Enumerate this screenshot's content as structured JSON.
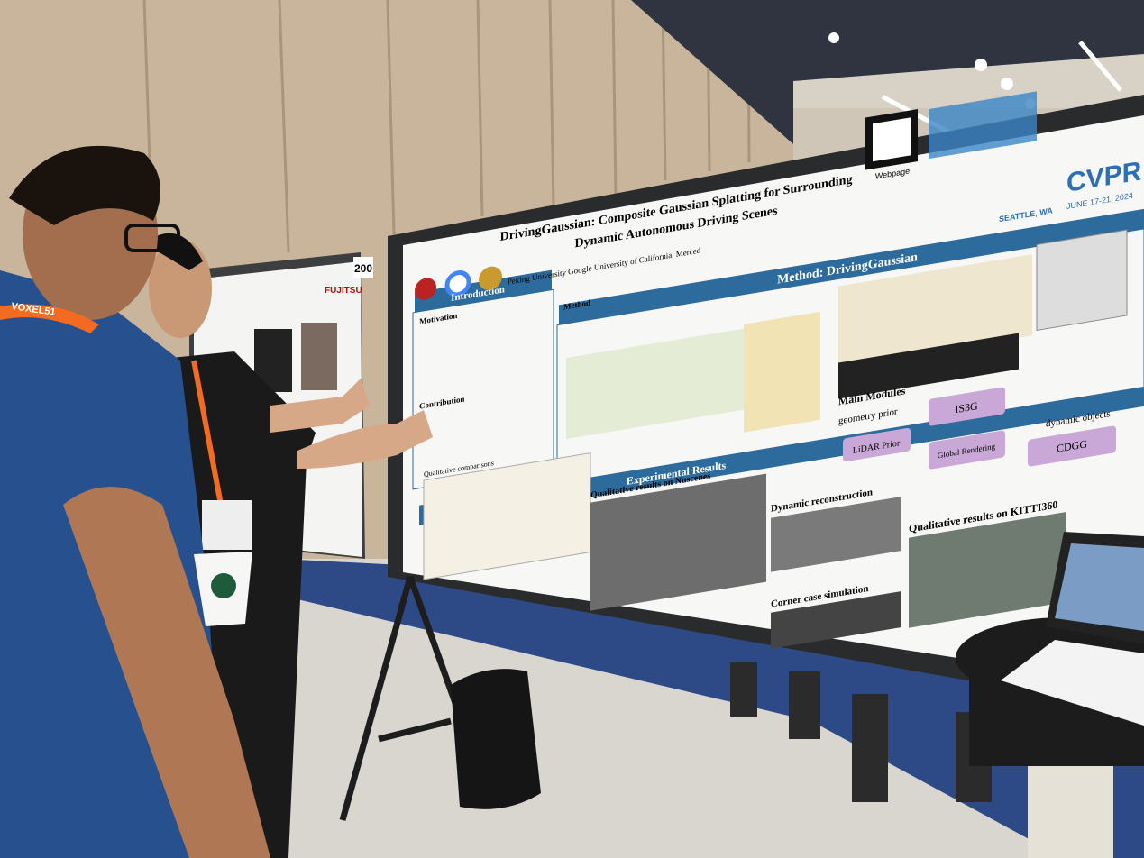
{
  "poster": {
    "title_line1": "DrivingGaussian: Composite Gaussian Splatting for Surrounding",
    "title_line2": "Dynamic Autonomous Driving Scenes",
    "affiliations": "Peking University  Google  University of California, Merced",
    "webpage": "Webpage",
    "conference": "CVPR",
    "location": "SEATTLE, WA",
    "dates": "JUNE 17-21, 2024",
    "method_header": "Method: DrivingGaussian",
    "introduction": "Introduction",
    "motivation": "Motivation",
    "contribution": "Contribution",
    "method": "Method",
    "main_modules": "Main Modules",
    "geometry_prior": "geometry prior",
    "dynamic_objects": "dynamic objects",
    "is3g": "IS3G",
    "lidar_prior": "LiDAR Prior",
    "global_rendering": "Global Rendering",
    "cdgg": "CDGG",
    "results_header": "Experimental Results",
    "qualitative_comparisons": "Qualitative comparisons",
    "nuscenes": "Qualitative results on Nuscenes",
    "dynamic_reconstruction": "Dynamic reconstruction",
    "kitti": "Qualitative results on KITTI360",
    "corner_case": "Corner case simulation"
  },
  "background": {
    "board_number": "200",
    "side_poster_brand": "FUJITSU",
    "lanyard": "VOXEL51"
  }
}
